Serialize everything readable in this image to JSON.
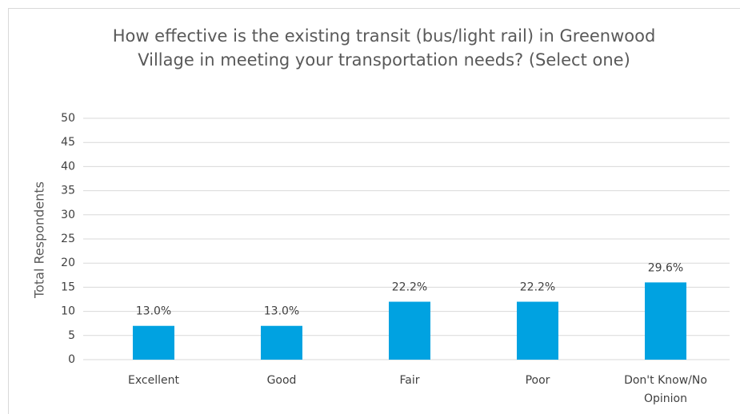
{
  "chart_data": {
    "type": "bar",
    "title": "How effective is the existing transit (bus/light rail) in Greenwood Village in meeting your transportation needs? (Select one)",
    "y_label": "Total Respondents",
    "categories": [
      "Excellent",
      "Good",
      "Fair",
      "Poor",
      "Don't Know/No Opinion"
    ],
    "values": [
      7,
      7,
      12,
      12,
      16
    ],
    "percent_labels": [
      "13.0%",
      "13.0%",
      "22.2%",
      "22.2%",
      "29.6%"
    ],
    "color": "#00a2e1",
    "ylim": [
      0,
      50
    ],
    "yticks": [
      0,
      5,
      10,
      15,
      20,
      25,
      30,
      35,
      40,
      45,
      50
    ],
    "grid": true
  }
}
